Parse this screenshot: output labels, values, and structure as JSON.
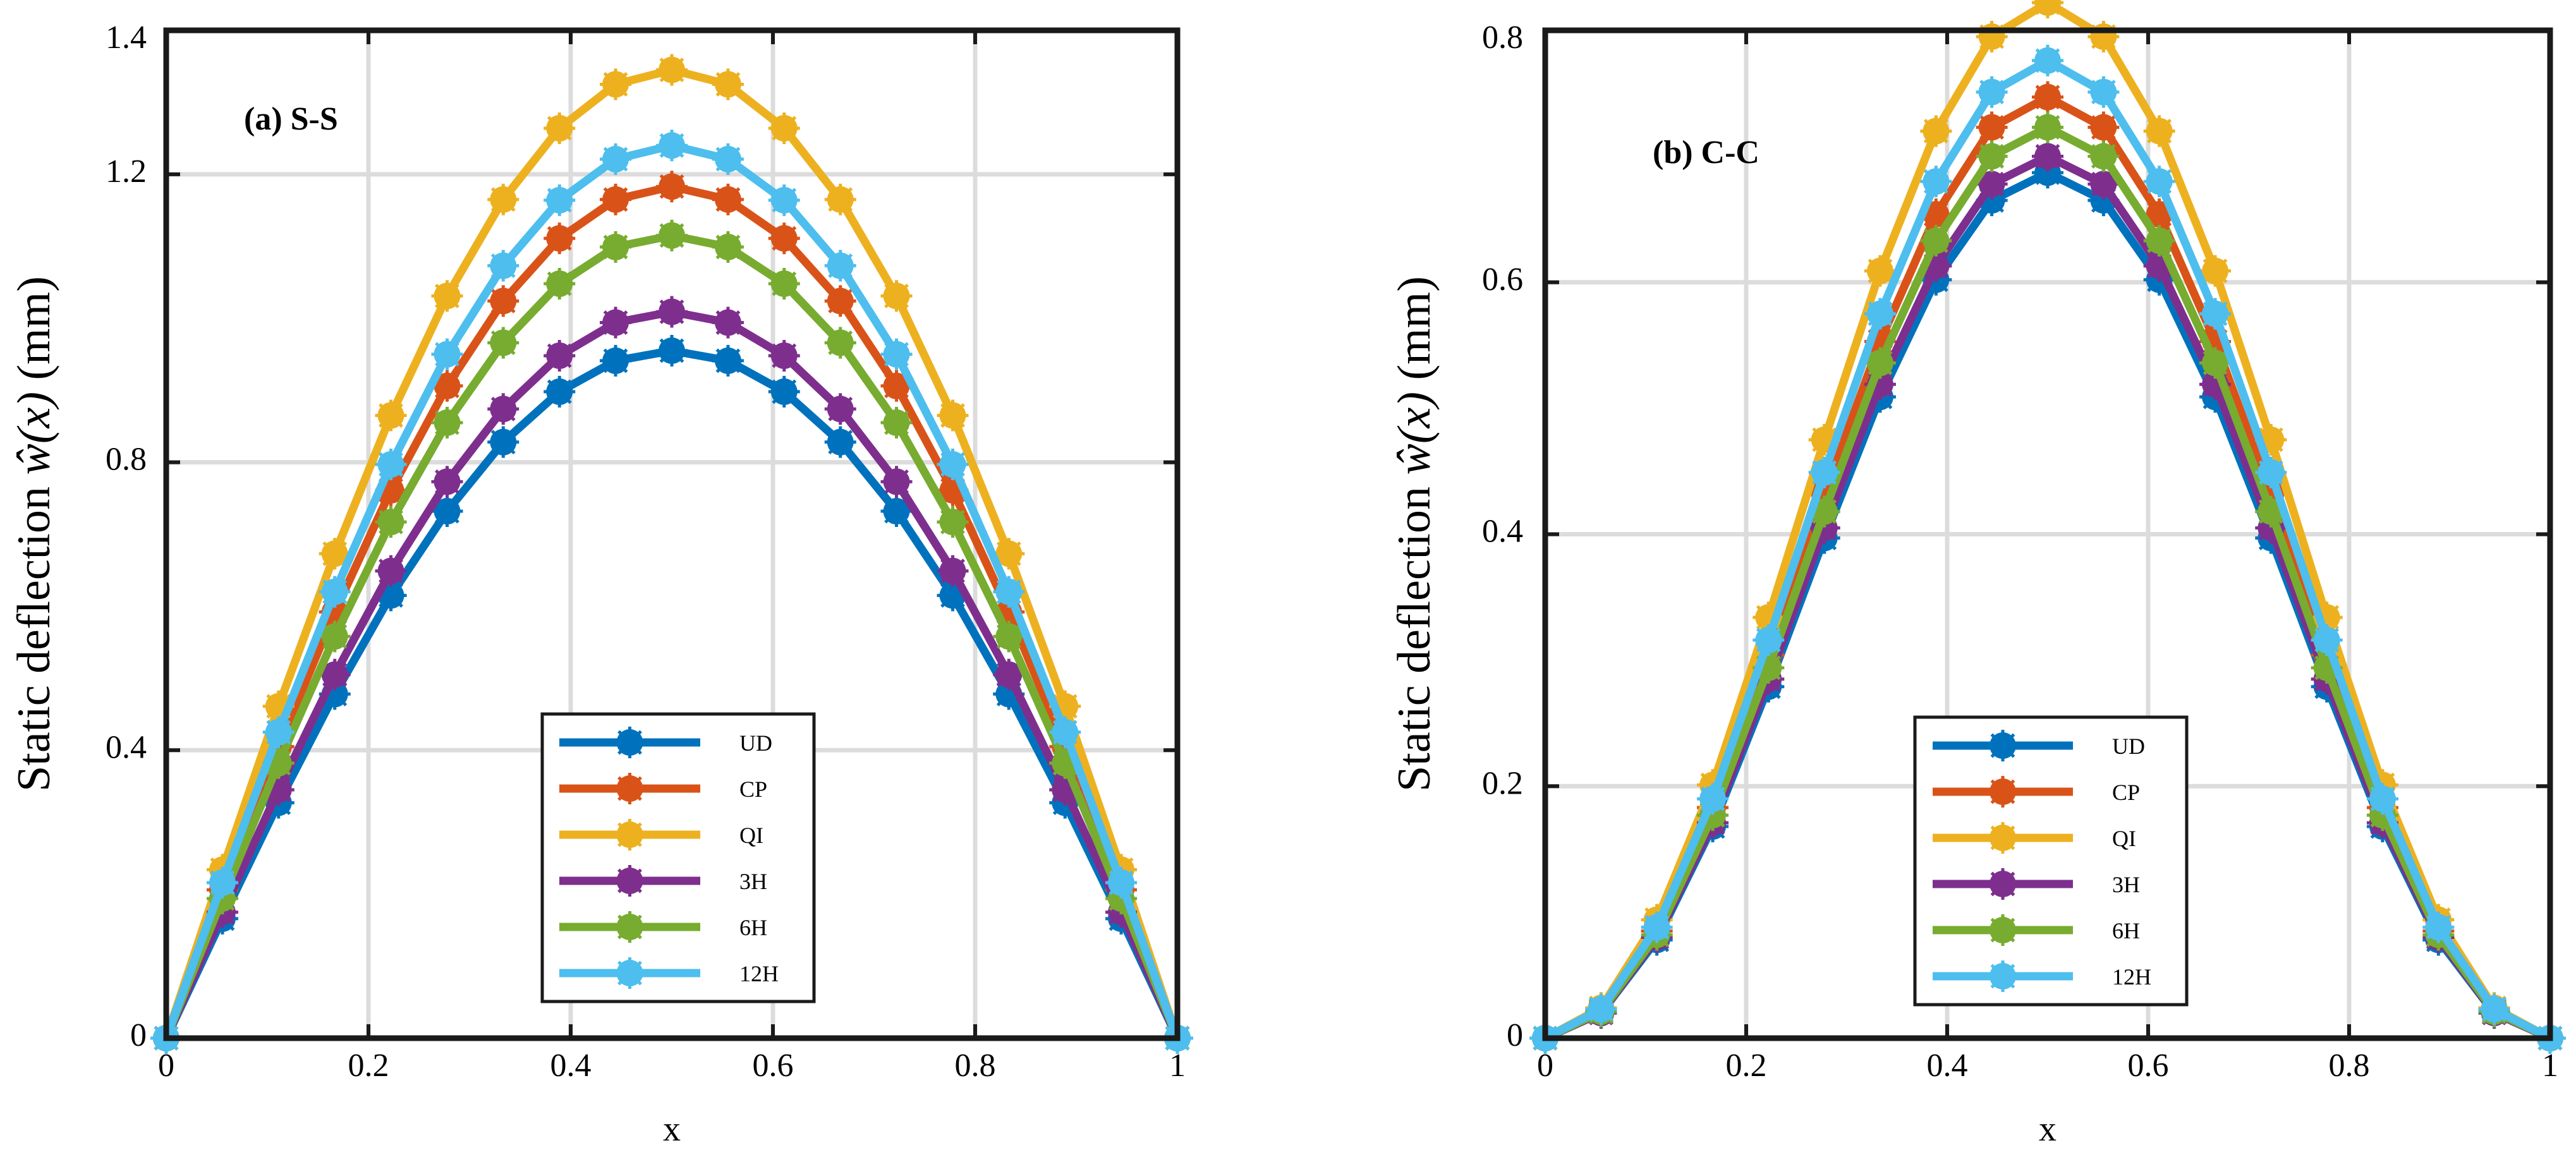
{
  "chart_data": [
    {
      "type": "line",
      "title": "(a) S-S",
      "xlabel": "x",
      "ylabel": "Static deflection",
      "ylabel_math": "ŵ(x)",
      "ylabel_unit": "(mm)",
      "xlim": [
        0,
        1
      ],
      "ylim": [
        0,
        1.4
      ],
      "xticks": [
        0,
        0.2,
        0.4,
        0.6,
        0.8,
        1
      ],
      "xtick_labels": [
        "0",
        "0.2",
        "0.4",
        "0.6",
        "0.8",
        "1"
      ],
      "yticks": [
        0,
        0.4,
        0.8,
        1.2,
        1.4
      ],
      "ytick_labels": [
        "0",
        "0.4",
        "0.8",
        "1.2",
        "1.4"
      ],
      "grid": true,
      "legend_position": "bottom-center",
      "x": [
        0,
        0.0556,
        0.1111,
        0.1667,
        0.2222,
        0.2778,
        0.3333,
        0.3889,
        0.4444,
        0.5,
        0.5556,
        0.6111,
        0.6667,
        0.7222,
        0.7778,
        0.8333,
        0.8889,
        0.9444,
        1
      ],
      "series": [
        {
          "name": "UD",
          "color": "#0072BD",
          "values": [
            0,
            0.166,
            0.327,
            0.478,
            0.615,
            0.732,
            0.828,
            0.898,
            0.941,
            0.955,
            0.941,
            0.898,
            0.828,
            0.732,
            0.615,
            0.478,
            0.327,
            0.166,
            0
          ]
        },
        {
          "name": "CP",
          "color": "#D95319",
          "values": [
            0,
            0.206,
            0.405,
            0.592,
            0.761,
            0.906,
            1.024,
            1.111,
            1.165,
            1.183,
            1.165,
            1.111,
            1.024,
            0.906,
            0.761,
            0.592,
            0.405,
            0.206,
            0
          ]
        },
        {
          "name": "QI",
          "color": "#EDB120",
          "values": [
            0,
            0.234,
            0.461,
            0.673,
            0.865,
            1.031,
            1.165,
            1.264,
            1.325,
            1.345,
            1.325,
            1.264,
            1.165,
            1.031,
            0.865,
            0.673,
            0.461,
            0.234,
            0
          ]
        },
        {
          "name": "3H",
          "color": "#7E2F8E",
          "values": [
            0,
            0.175,
            0.345,
            0.505,
            0.649,
            0.773,
            0.874,
            0.948,
            0.994,
            1.009,
            0.994,
            0.948,
            0.874,
            0.773,
            0.649,
            0.505,
            0.345,
            0.175,
            0
          ]
        },
        {
          "name": "6H",
          "color": "#77AC30",
          "values": [
            0,
            0.194,
            0.382,
            0.558,
            0.717,
            0.855,
            0.966,
            1.048,
            1.099,
            1.115,
            1.099,
            1.048,
            0.966,
            0.855,
            0.717,
            0.558,
            0.382,
            0.194,
            0
          ]
        },
        {
          "name": "12H",
          "color": "#4DBEEE",
          "values": [
            0,
            0.216,
            0.425,
            0.62,
            0.797,
            0.95,
            1.073,
            1.164,
            1.221,
            1.24,
            1.221,
            1.164,
            1.073,
            0.95,
            0.797,
            0.62,
            0.425,
            0.216,
            0
          ]
        }
      ]
    },
    {
      "type": "line",
      "title": "(b) C-C",
      "xlabel": "x",
      "ylabel": "Static deflection",
      "ylabel_math": "ŵ(x)",
      "ylabel_unit": "(mm)",
      "xlim": [
        0,
        1
      ],
      "ylim": [
        0,
        0.8
      ],
      "xticks": [
        0,
        0.2,
        0.4,
        0.6,
        0.8,
        1
      ],
      "xtick_labels": [
        "0",
        "0.2",
        "0.4",
        "0.6",
        "0.8",
        "1"
      ],
      "yticks": [
        0,
        0.2,
        0.4,
        0.6,
        0.8
      ],
      "ytick_labels": [
        "0",
        "0.2",
        "0.4",
        "0.6",
        "0.8"
      ],
      "grid": true,
      "legend_position": "bottom-center",
      "x": [
        0,
        0.0556,
        0.1111,
        0.1667,
        0.2222,
        0.2778,
        0.3333,
        0.3889,
        0.4444,
        0.5,
        0.5556,
        0.6111,
        0.6667,
        0.7222,
        0.7778,
        0.8333,
        0.8889,
        0.9444,
        1
      ],
      "series": [
        {
          "name": "UD",
          "color": "#0072BD",
          "values": [
            0,
            0.02,
            0.078,
            0.168,
            0.279,
            0.397,
            0.509,
            0.602,
            0.665,
            0.687,
            0.665,
            0.602,
            0.509,
            0.397,
            0.279,
            0.168,
            0.078,
            0.02,
            0
          ]
        },
        {
          "name": "CP",
          "color": "#D95319",
          "values": [
            0,
            0.022,
            0.085,
            0.183,
            0.304,
            0.432,
            0.553,
            0.654,
            0.723,
            0.747,
            0.723,
            0.654,
            0.553,
            0.432,
            0.304,
            0.183,
            0.085,
            0.022,
            0
          ]
        },
        {
          "name": "QI",
          "color": "#EDB120",
          "values": [
            0,
            0.024,
            0.094,
            0.201,
            0.334,
            0.475,
            0.609,
            0.72,
            0.795,
            0.822,
            0.795,
            0.72,
            0.609,
            0.475,
            0.334,
            0.201,
            0.094,
            0.024,
            0
          ]
        },
        {
          "name": "3H",
          "color": "#7E2F8E",
          "values": [
            0,
            0.02,
            0.08,
            0.171,
            0.285,
            0.405,
            0.519,
            0.613,
            0.678,
            0.7,
            0.678,
            0.613,
            0.519,
            0.405,
            0.285,
            0.171,
            0.08,
            0.02,
            0
          ]
        },
        {
          "name": "6H",
          "color": "#77AC30",
          "values": [
            0,
            0.021,
            0.082,
            0.177,
            0.294,
            0.418,
            0.536,
            0.633,
            0.7,
            0.723,
            0.7,
            0.633,
            0.536,
            0.418,
            0.294,
            0.177,
            0.082,
            0.021,
            0
          ]
        },
        {
          "name": "12H",
          "color": "#4DBEEE",
          "values": [
            0,
            0.023,
            0.088,
            0.19,
            0.316,
            0.449,
            0.575,
            0.68,
            0.751,
            0.776,
            0.751,
            0.68,
            0.575,
            0.449,
            0.316,
            0.19,
            0.088,
            0.023,
            0
          ]
        }
      ]
    }
  ]
}
